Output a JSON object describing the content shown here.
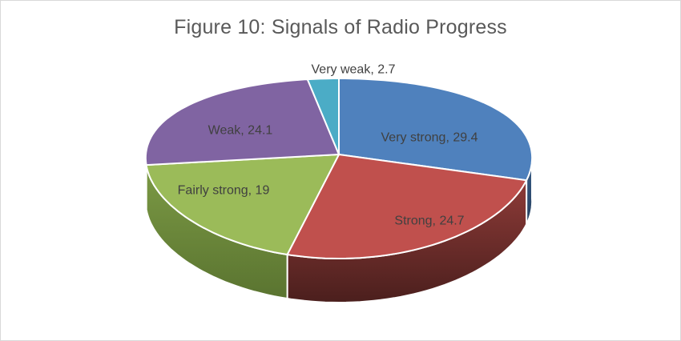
{
  "frame": {
    "background": "#FFFFFF",
    "border_color": "#D9D9D9"
  },
  "chart_data": {
    "type": "pie",
    "effect": "3d",
    "title": "Figure 10: Signals of Radio Progress",
    "title_color": "#595959",
    "label_color": "#404040",
    "data_label_format": "category, value",
    "legend_position": "none",
    "slices": [
      {
        "label": "Very strong",
        "value": 29.4,
        "color": "#4F81BD"
      },
      {
        "label": "Strong",
        "value": 24.7,
        "color": "#C0504D"
      },
      {
        "label": "Fairly strong",
        "value": 19,
        "color": "#9BBB59"
      },
      {
        "label": "Weak",
        "value": 24.1,
        "color": "#8064A2"
      },
      {
        "label": "Very weak",
        "value": 2.7,
        "color": "#4BACC6"
      }
    ]
  }
}
